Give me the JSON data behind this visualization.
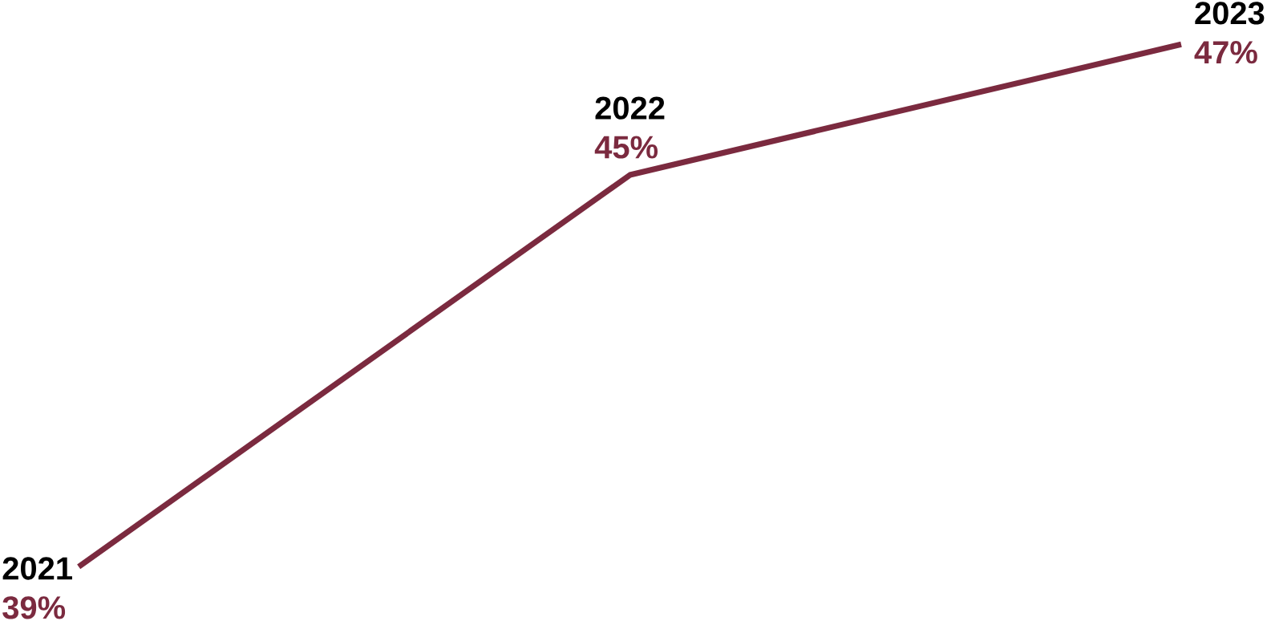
{
  "chart_data": {
    "type": "line",
    "categories": [
      "2021",
      "2022",
      "2023"
    ],
    "values": [
      39,
      45,
      47
    ],
    "value_labels": [
      "39%",
      "45%",
      "47%"
    ],
    "color": "#7b2a3f"
  }
}
